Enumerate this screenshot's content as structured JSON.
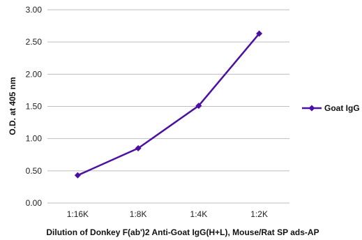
{
  "chart_data": {
    "type": "line",
    "categories": [
      "1:16K",
      "1:8K",
      "1:4K",
      "1:2K"
    ],
    "series": [
      {
        "name": "Goat IgG",
        "values": [
          0.43,
          0.85,
          1.51,
          2.63
        ]
      }
    ],
    "xlabel": "Dilution of Donkey F(ab')2 Anti-Goat IgG(H+L), Mouse/Rat SP ads-AP",
    "ylabel": "O.D. at 405 nm",
    "ylim": [
      0,
      3
    ],
    "yticks": [
      "0.00",
      "0.50",
      "1.00",
      "1.50",
      "2.00",
      "2.50",
      "3.00"
    ],
    "grid": true,
    "legend": "right",
    "series_color": "#4B0FA3",
    "grid_color": "#BEBEBE"
  }
}
